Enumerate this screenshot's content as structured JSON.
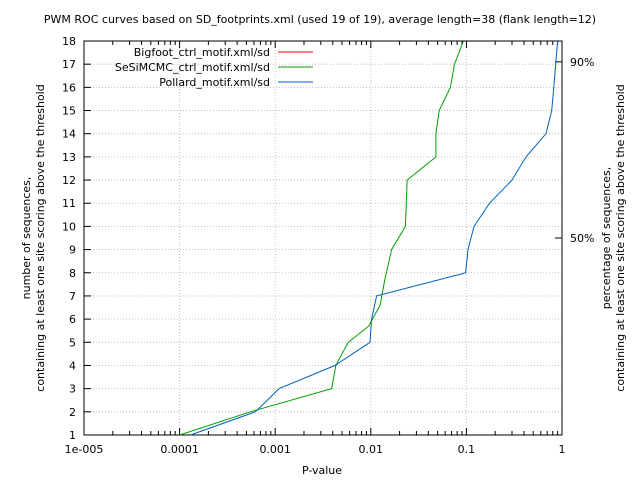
{
  "chart_data": {
    "type": "line",
    "title": "PWM ROC curves based on SD_footprints.xml (used 19 of 19), average length=38 (flank length=12)",
    "xlabel": "P-value",
    "ylabel_line1": "number of sequences,",
    "ylabel_line2": "containing at least one site scoring above the threshold",
    "y2label_line1": "percentage of sequences,",
    "y2label_line2": "containing at least one site scoring above the threshold",
    "xscale": "log",
    "xlim": [
      1e-05,
      1
    ],
    "ylim": [
      1,
      18
    ],
    "xticks": [
      {
        "value": 1e-05,
        "label": "1e-005"
      },
      {
        "value": 0.0001,
        "label": "0.0001"
      },
      {
        "value": 0.001,
        "label": "0.001"
      },
      {
        "value": 0.01,
        "label": "0.01"
      },
      {
        "value": 0.1,
        "label": "0.1"
      },
      {
        "value": 1,
        "label": "1"
      }
    ],
    "yticks": [
      1,
      2,
      3,
      4,
      5,
      6,
      7,
      8,
      9,
      10,
      11,
      12,
      13,
      14,
      15,
      16,
      17,
      18
    ],
    "y2ticks": [
      {
        "value": 9.5,
        "label": "50%"
      },
      {
        "value": 17.1,
        "label": "90%"
      }
    ],
    "grid": true,
    "legend_position": "top-left",
    "series": [
      {
        "name": "Bigfoot_ctrl_motif.xml/sd",
        "color": "#ff0000",
        "x": [],
        "y": []
      },
      {
        "name": "SeSiMCMC_ctrl_motif.xml/sd",
        "color": "#00a000",
        "x": [
          0.0001,
          0.00055,
          0.0039,
          0.0043,
          0.0058,
          0.0095,
          0.0125,
          0.014,
          0.0165,
          0.023,
          0.0235,
          0.024,
          0.048,
          0.048,
          0.052,
          0.068,
          0.075,
          0.093
        ],
        "y": [
          1,
          2,
          3,
          4,
          5,
          5.7,
          6.6,
          7.7,
          9,
          10,
          11,
          12,
          13,
          14,
          15,
          16,
          17,
          18
        ]
      },
      {
        "name": "Pollard_motif.xml/sd",
        "color": "#0060c0",
        "x": [
          0.00013,
          0.00062,
          0.0011,
          0.0042,
          0.0098,
          0.0102,
          0.0115,
          0.098,
          0.104,
          0.12,
          0.175,
          0.3,
          0.42,
          0.68,
          0.78,
          0.82,
          0.86,
          0.9
        ],
        "y": [
          1,
          2,
          3,
          4,
          5,
          6,
          7,
          8,
          9,
          10,
          11,
          12,
          13,
          14,
          15,
          16,
          17,
          18
        ]
      }
    ]
  }
}
